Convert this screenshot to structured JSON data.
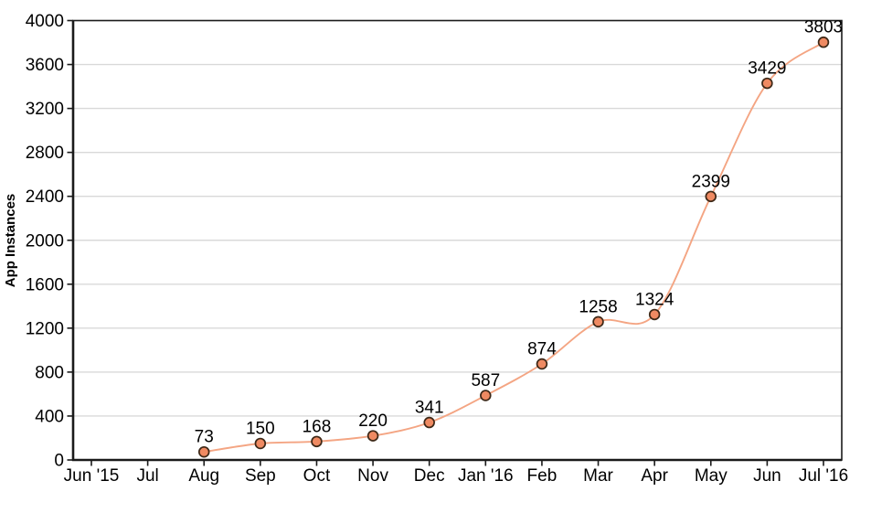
{
  "chart_data": {
    "type": "line",
    "title": "",
    "xlabel": "",
    "ylabel": "App Instances",
    "categories": [
      "Jun '15",
      "Jul",
      "Aug",
      "Sep",
      "Oct",
      "Nov",
      "Dec",
      "Jan '16",
      "Feb",
      "Mar",
      "Apr",
      "May",
      "Jun",
      "Jul '16"
    ],
    "series": [
      {
        "name": "App Instances",
        "values": [
          null,
          null,
          73,
          150,
          168,
          220,
          341,
          587,
          874,
          1258,
          1324,
          2399,
          3429,
          3803
        ]
      }
    ],
    "data_labels": [
      "73",
      "150",
      "168",
      "220",
      "341",
      "587",
      "874",
      "1258",
      "1324",
      "2399",
      "3429",
      "3803"
    ],
    "ylim": [
      0,
      4000
    ],
    "yticks": [
      0,
      400,
      800,
      1200,
      1600,
      2000,
      2400,
      2800,
      3200,
      3600,
      4000
    ],
    "ytick_step": 400,
    "grid": "horizontal",
    "legend": "none",
    "line_shape": "spline",
    "show_markers": true,
    "colors": {
      "line": "#f4a583",
      "marker_fill": "#ef8a62",
      "marker_stroke": "#3d2817",
      "grid": "#d9d9d9",
      "axis": "#1a1a1a",
      "text": "#000000",
      "background": "#ffffff"
    }
  }
}
